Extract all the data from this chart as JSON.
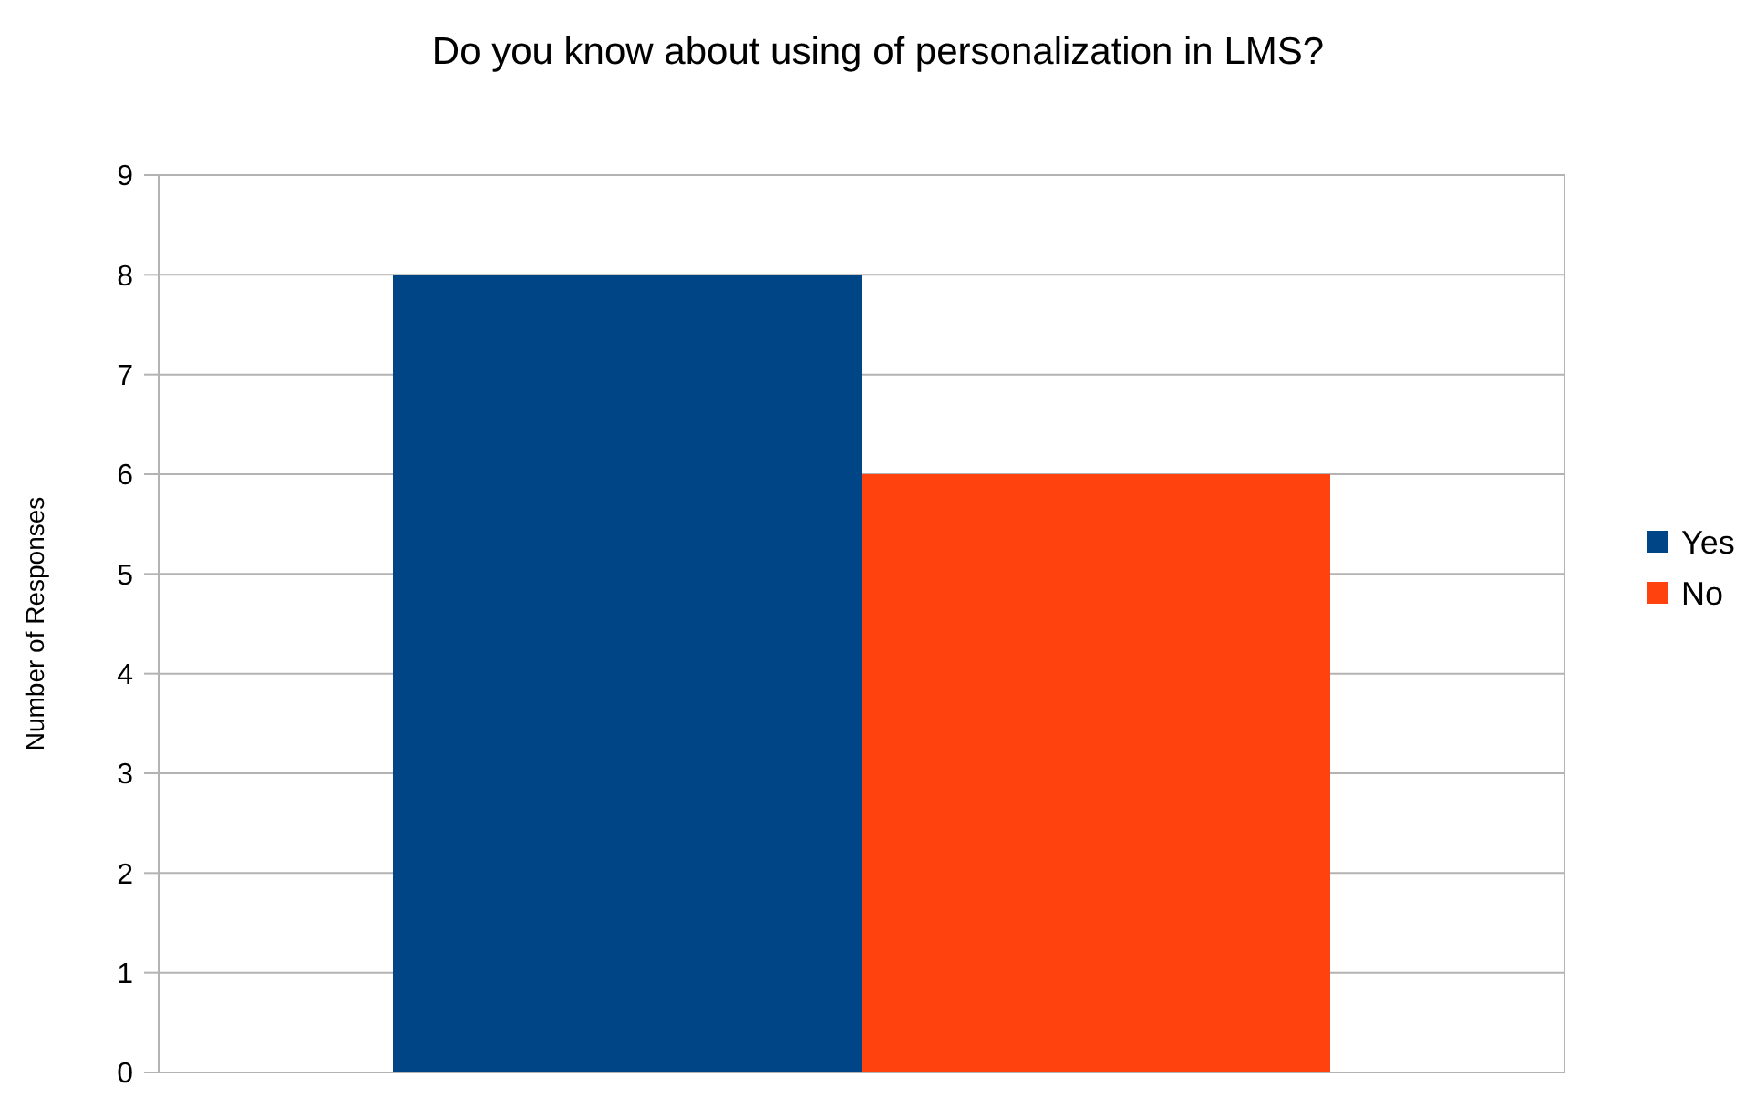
{
  "chart_data": {
    "type": "bar",
    "title": "Do you know about using of personalization in LMS?",
    "ylabel": "Number of Responses",
    "categories": [
      null
    ],
    "series": [
      {
        "name": "Yes",
        "color": "#004586",
        "values": [
          8
        ]
      },
      {
        "name": "No",
        "color": "#ff420e",
        "values": [
          6
        ]
      }
    ],
    "ylim": [
      0,
      9
    ],
    "yticks": [
      0,
      1,
      2,
      3,
      4,
      5,
      6,
      7,
      8,
      9
    ],
    "grid": "y",
    "legend": "right"
  }
}
